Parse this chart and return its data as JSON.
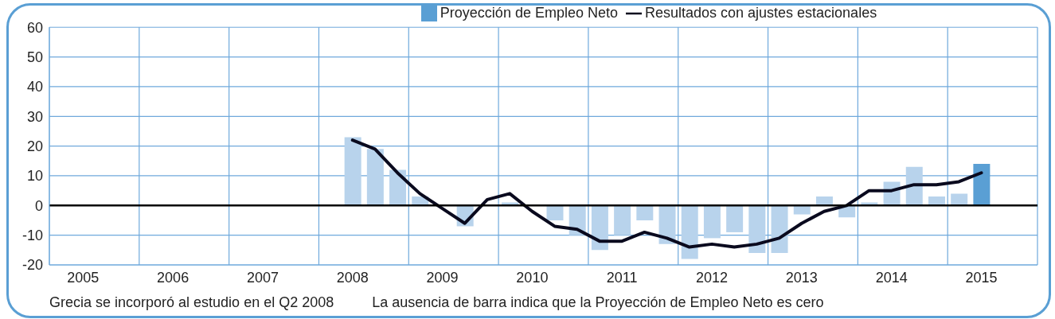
{
  "chart_data": {
    "type": "bar",
    "categories": [
      null,
      "2005",
      null,
      null,
      null,
      "2006",
      null,
      null,
      null,
      "2007",
      null,
      null,
      null,
      "2008",
      null,
      null,
      null,
      "2009",
      null,
      null,
      null,
      "2010",
      null,
      null,
      null,
      "2011",
      null,
      null,
      null,
      "2012",
      null,
      null,
      null,
      "2013",
      null,
      null,
      null,
      "2014",
      null,
      null,
      null,
      "2015",
      null,
      null
    ],
    "series": [
      {
        "name": "Proyección de Empleo Neto",
        "color": "#5a9fd4",
        "colors": [
          "#b8d3ec",
          "#b8d3ec",
          "#b8d3ec",
          "#b8d3ec",
          "#b8d3ec",
          "#b8d3ec",
          "#b8d3ec",
          "#b8d3ec",
          "#b8d3ec",
          "#b8d3ec",
          "#b8d3ec",
          "#b8d3ec",
          "#b8d3ec",
          "#b8d3ec",
          "#b8d3ec",
          "#b8d3ec",
          "#b8d3ec",
          "#b8d3ec",
          "#b8d3ec",
          "#b8d3ec",
          "#b8d3ec",
          "#b8d3ec",
          "#b8d3ec",
          "#b8d3ec",
          "#b8d3ec",
          "#b8d3ec",
          "#b8d3ec",
          "#b8d3ec",
          "#b8d3ec",
          "#b8d3ec",
          "#b8d3ec",
          "#b8d3ec",
          "#b8d3ec",
          "#b8d3ec",
          "#b8d3ec",
          "#b8d3ec",
          "#b8d3ec",
          "#b8d3ec",
          "#b8d3ec",
          "#b8d3ec",
          "#b8d3ec",
          "#5a9fd4",
          "#b8d3ec",
          "#b8d3ec"
        ],
        "values": [
          null,
          null,
          null,
          null,
          null,
          null,
          null,
          null,
          null,
          null,
          null,
          null,
          null,
          23,
          19,
          12,
          3,
          0,
          -7,
          0,
          1,
          0,
          -5,
          -10,
          -15,
          -10,
          -5,
          -13,
          -18,
          -11,
          -9,
          -16,
          -16,
          -3,
          3,
          -4,
          1,
          8,
          13,
          3,
          4,
          14,
          null,
          null
        ]
      },
      {
        "name": "Resultados con ajustes estacionales",
        "type": "line",
        "color": "#0a0a1e",
        "values": [
          null,
          null,
          null,
          null,
          null,
          null,
          null,
          null,
          null,
          null,
          null,
          null,
          null,
          22,
          19,
          11,
          4,
          -1,
          -6,
          2,
          4,
          -2,
          -7,
          -8,
          -12,
          -12,
          -9,
          -11,
          -14,
          -13,
          -14,
          -13,
          -11,
          -6,
          -2,
          0,
          5,
          5,
          7,
          7,
          8,
          11,
          null,
          null
        ]
      }
    ],
    "ylim": [
      -20,
      60
    ],
    "yticks": [
      -20,
      -10,
      0,
      10,
      20,
      30,
      40,
      50,
      60
    ],
    "grid": true,
    "legend": "top",
    "ref_lines": [
      {
        "axis": "y",
        "value": 0,
        "color": "#000000"
      }
    ],
    "annotations": [
      "Grecia se incorporó al estudio en el Q2 2008",
      "La ausencia de barra indica que la Proyección de Empleo Neto es cero"
    ]
  }
}
